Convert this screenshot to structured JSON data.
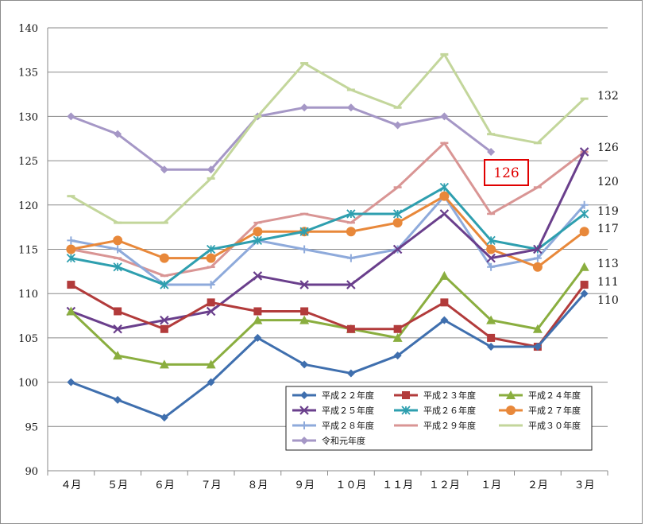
{
  "chart_data": {
    "type": "line",
    "title": "",
    "xlabel": "",
    "ylabel": "",
    "ylim": [
      90,
      140
    ],
    "y_ticks": [
      "90",
      "95",
      "100",
      "105",
      "110",
      "115",
      "120",
      "125",
      "130",
      "135",
      "140"
    ],
    "categories": [
      "４月",
      "５月",
      "６月",
      "７月",
      "８月",
      "９月",
      "１０月",
      "１１月",
      "１２月",
      "１月",
      "２月",
      "３月"
    ],
    "grid": "horizontal",
    "legend_position": "bottom-right",
    "series": [
      {
        "name": "平成２２年度",
        "color": "#3F6FAE",
        "marker": "diamond",
        "values": [
          100,
          98,
          96,
          100,
          105,
          102,
          101,
          103,
          107,
          104,
          104,
          110
        ]
      },
      {
        "name": "平成２３年度",
        "color": "#B23B3B",
        "marker": "square",
        "values": [
          111,
          108,
          106,
          109,
          108,
          108,
          106,
          106,
          109,
          105,
          104,
          111
        ]
      },
      {
        "name": "平成２４年度",
        "color": "#8AAE3F",
        "marker": "triangle",
        "values": [
          108,
          103,
          102,
          102,
          107,
          107,
          106,
          105,
          112,
          107,
          106,
          113
        ]
      },
      {
        "name": "平成２５年度",
        "color": "#6A3F8C",
        "marker": "x",
        "values": [
          108,
          106,
          107,
          108,
          112,
          111,
          111,
          115,
          119,
          114,
          115,
          126
        ]
      },
      {
        "name": "平成２６年度",
        "color": "#2E9FAF",
        "marker": "asterisk",
        "values": [
          114,
          113,
          111,
          115,
          116,
          117,
          119,
          119,
          122,
          116,
          115,
          119
        ]
      },
      {
        "name": "平成２７年度",
        "color": "#E8883A",
        "marker": "circle",
        "values": [
          115,
          116,
          114,
          114,
          117,
          117,
          117,
          118,
          121,
          115,
          113,
          117
        ]
      },
      {
        "name": "平成２８年度",
        "color": "#8EAADB",
        "marker": "plus",
        "values": [
          116,
          115,
          111,
          111,
          116,
          115,
          114,
          115,
          121,
          113,
          114,
          120
        ]
      },
      {
        "name": "平成２９年度",
        "color": "#D99594",
        "marker": "dash",
        "values": [
          115,
          114,
          112,
          113,
          118,
          119,
          118,
          122,
          127,
          119,
          122,
          126
        ]
      },
      {
        "name": "平成３０年度",
        "color": "#C3D69B",
        "marker": "bar",
        "values": [
          121,
          118,
          118,
          123,
          130,
          136,
          133,
          131,
          137,
          128,
          127,
          132
        ]
      },
      {
        "name": "令和元年度",
        "color": "#A597C6",
        "marker": "diamond",
        "values": [
          130,
          128,
          124,
          124,
          130,
          131,
          131,
          129,
          130,
          126,
          null,
          null
        ]
      }
    ],
    "end_labels": [
      "132",
      "126",
      "120",
      "119",
      "117",
      "113",
      "111",
      "110"
    ],
    "callout": {
      "text": "126",
      "color": "#E00000"
    }
  }
}
